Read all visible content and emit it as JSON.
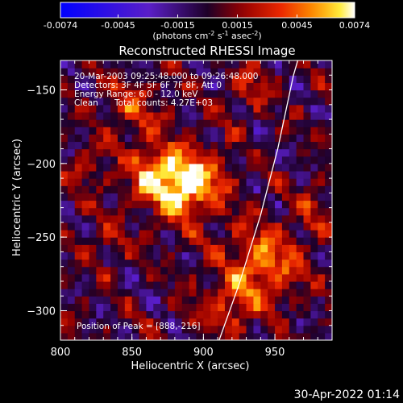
{
  "chart_data": {
    "type": "heatmap",
    "title": "Reconstructed RHESSI Image",
    "xlabel": "Heliocentric X (arcsec)",
    "ylabel": "Heliocentric Y (arcsec)",
    "xlim": [
      800,
      990
    ],
    "ylim": [
      -320,
      -130
    ],
    "x_ticks": [
      800,
      850,
      900,
      950
    ],
    "y_ticks": [
      -150,
      -200,
      -250,
      -300
    ],
    "colorbar": {
      "range": [
        -0.0074,
        0.0074
      ],
      "tick_labels": [
        "-0.0074",
        "-0.0045",
        "-0.0015",
        "0.0015",
        "0.0045",
        "0.0074"
      ],
      "unit_prefix": "(photons cm",
      "unit_exp1": "-2",
      "unit_mid": " s",
      "unit_exp2": "-1",
      "unit_mid2": " asec",
      "unit_exp3": "-2",
      "unit_suffix": ")",
      "colormap": "rhessi-blue-purple-red-yellow-white"
    },
    "annotations": {
      "time_range": "20-Mar-2003 09:25:48.000 to 09:26:48.000",
      "detectors": "Detectors: 3F 4F 5F 6F 7F 8F, Att 0",
      "energy": "Energy Range: 6.0 - 12.0 keV",
      "method": "Clean",
      "counts": "Total counts: 4.27E+03",
      "peak": "Position of Peak = [888,-216]"
    },
    "peak": {
      "x": 888,
      "y": -216
    },
    "sources": [
      {
        "x": 888,
        "y": -216,
        "peak": 0.0074,
        "sigma": 16
      },
      {
        "x": 862,
        "y": -210,
        "peak": 0.0042,
        "sigma": 14
      },
      {
        "x": 940,
        "y": -270,
        "peak": 0.0048,
        "sigma": 18
      },
      {
        "x": 915,
        "y": -300,
        "peak": 0.003,
        "sigma": 14
      },
      {
        "x": 850,
        "y": -165,
        "peak": 0.003,
        "sigma": 14
      },
      {
        "x": 930,
        "y": -150,
        "peak": 0.0022,
        "sigma": 12
      },
      {
        "x": 815,
        "y": -205,
        "peak": 0.0022,
        "sigma": 10
      },
      {
        "x": 975,
        "y": -230,
        "peak": 0.0018,
        "sigma": 12
      },
      {
        "x": 830,
        "y": -260,
        "peak": 0.0015,
        "sigma": 12
      }
    ],
    "limb_curve": [
      {
        "x": 911,
        "y": -320
      },
      {
        "x": 925,
        "y": -282
      },
      {
        "x": 940,
        "y": -235
      },
      {
        "x": 952,
        "y": -190
      },
      {
        "x": 963,
        "y": -140
      },
      {
        "x": 966,
        "y": -130
      }
    ]
  },
  "footer": {
    "timestamp": "30-Apr-2022 01:14"
  }
}
